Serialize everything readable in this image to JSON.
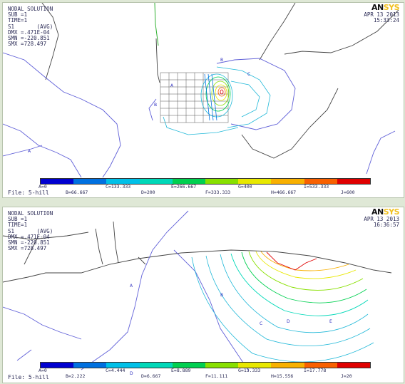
{
  "top": {
    "title": "NODAL SOLUTION",
    "lines": [
      "SUB =1",
      "TIME=1",
      "S1       (AVG)",
      "DMX =.471E-04",
      "SMN =-220.851",
      "SMX =728.497"
    ],
    "date": "APR 13 2013",
    "time": "15:33:24",
    "file": "File: 5-hill",
    "legend_upper": [
      "A=0",
      "C=133.333",
      "E=266.667",
      "G=400",
      "I=533.333"
    ],
    "legend_lower": [
      "B=66.667",
      "D=200",
      "F=333.333",
      "H=466.667",
      "J=600"
    ]
  },
  "bottom": {
    "title": "NODAL SOLUTION",
    "lines": [
      "SUB =1",
      "TIME=1",
      "S1       (AVG)",
      "DMX =.471E-04",
      "SMN =-220.851",
      "SMX =728.497"
    ],
    "date": "APR 13 2013",
    "time": "16:36:57",
    "file": "File: 5-hill",
    "legend_upper": [
      "A=0",
      "C=4.444",
      "E=8.889",
      "G=13.333",
      "I=17.778"
    ],
    "legend_lower": [
      "B=2.222",
      "D=6.667",
      "F=11.111",
      "H=15.556",
      "J=20"
    ]
  },
  "logo": {
    "a": "AN",
    "b": "SYS"
  },
  "legend_colors": [
    "#0000d0",
    "#0070e0",
    "#00c0e8",
    "#00d8b8",
    "#00d050",
    "#88e000",
    "#e8e800",
    "#f8b000",
    "#f86000",
    "#e00000"
  ]
}
